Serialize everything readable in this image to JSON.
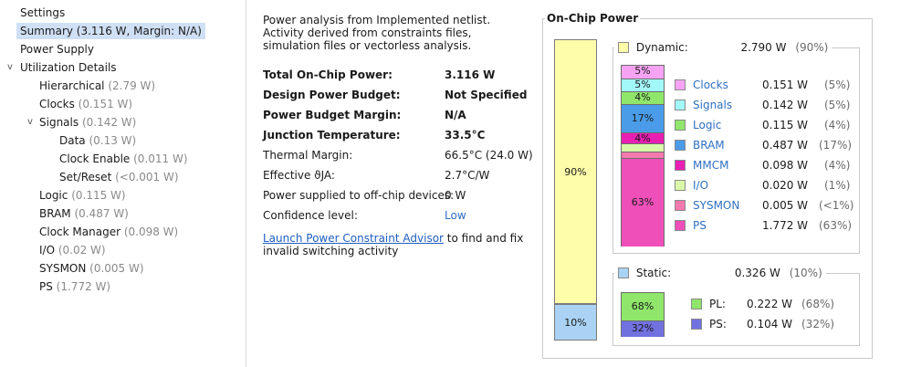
{
  "tree": {
    "items": [
      {
        "label": "Settings",
        "muted": ""
      },
      {
        "label": "Summary (3.116 W, Margin: N/A)",
        "muted": ""
      },
      {
        "label": "Power Supply",
        "muted": ""
      },
      {
        "label": "Utilization Details",
        "muted": "",
        "expand": "v"
      },
      {
        "label": "Hierarchical",
        "muted": " (2.79 W)"
      },
      {
        "label": "Clocks",
        "muted": " (0.151 W)"
      },
      {
        "label": "Signals",
        "muted": " (0.142 W)",
        "expand": "v"
      },
      {
        "label": "Data",
        "muted": " (0.13 W)"
      },
      {
        "label": "Clock Enable",
        "muted": " (0.011 W)"
      },
      {
        "label": "Set/Reset",
        "muted": " (<0.001 W)"
      },
      {
        "label": "Logic",
        "muted": " (0.115 W)"
      },
      {
        "label": "BRAM",
        "muted": " (0.487 W)"
      },
      {
        "label": "Clock Manager",
        "muted": " (0.098 W)"
      },
      {
        "label": "I/O",
        "muted": " (0.02 W)"
      },
      {
        "label": "SYSMON",
        "muted": " (0.005 W)"
      },
      {
        "label": "PS",
        "muted": " (1.772 W)"
      }
    ]
  },
  "details": {
    "description": "Power analysis from Implemented netlist. Activity derived from constraints files, simulation files or vectorless analysis.",
    "rows": [
      {
        "key": "Total On-Chip Power:",
        "value": "3.116 W"
      },
      {
        "key": "Design Power Budget:",
        "value": "Not Specified"
      },
      {
        "key": "Power Budget Margin:",
        "value": "N/A"
      },
      {
        "key": "Junction Temperature:",
        "value": "33.5°C"
      },
      {
        "key": "Thermal Margin:",
        "value": "66.5°C (24.0 W)"
      },
      {
        "key": "Effective ϑJA:",
        "value": "2.7°C/W"
      },
      {
        "key": "Power supplied to off-chip devices:",
        "value": "0 W"
      },
      {
        "key": "Confidence level:",
        "value": "Low"
      }
    ],
    "advisor_link": "Launch Power Constraint Advisor",
    "advisor_text_1": " to find and fix",
    "advisor_text_2": "invalid switching activity"
  },
  "onchip": {
    "title": "On-Chip Power",
    "total_bar": {
      "dynamic_pct": "90%",
      "static_pct": "10%"
    },
    "dynamic": {
      "label": "Dynamic:",
      "value": "2.790 W",
      "pct": "(90%)",
      "color": "#fdfdaa",
      "items": [
        {
          "name": "Clocks",
          "value": "0.151 W",
          "pct": "(5%)",
          "color": "#f6a3f3",
          "bar_label": "5%"
        },
        {
          "name": "Signals",
          "value": "0.142 W",
          "pct": "(5%)",
          "color": "#a2f7f9",
          "bar_label": "5%"
        },
        {
          "name": "Logic",
          "value": "0.115 W",
          "pct": "(4%)",
          "color": "#8fe66b",
          "bar_label": "4%"
        },
        {
          "name": "BRAM",
          "value": "0.487 W",
          "pct": "(17%)",
          "color": "#4a9ce8",
          "bar_label": "17%"
        },
        {
          "name": "MMCM",
          "value": "0.098 W",
          "pct": "(4%)",
          "color": "#e81fb2",
          "bar_label": "4%"
        },
        {
          "name": "I/O",
          "value": "0.020 W",
          "pct": "(1%)",
          "color": "#d9f9a9",
          "bar_label": ""
        },
        {
          "name": "SYSMON",
          "value": "0.005 W",
          "pct": "(<1%)",
          "color": "#f47aae",
          "bar_label": ""
        },
        {
          "name": "PS",
          "value": "1.772 W",
          "pct": "(63%)",
          "color": "#ee4fb9",
          "bar_label": "63%"
        }
      ]
    },
    "static": {
      "label": "Static:",
      "value": "0.326 W",
      "pct": "(10%)",
      "color": "#a9d2f4",
      "items": [
        {
          "name": "PL:",
          "value": "0.222 W",
          "pct": "(68%)",
          "color": "#8fe66b",
          "bar_label": "68%"
        },
        {
          "name": "PS:",
          "value": "0.104 W",
          "pct": "(32%)",
          "color": "#7271e0",
          "bar_label": "32%"
        }
      ]
    }
  }
}
